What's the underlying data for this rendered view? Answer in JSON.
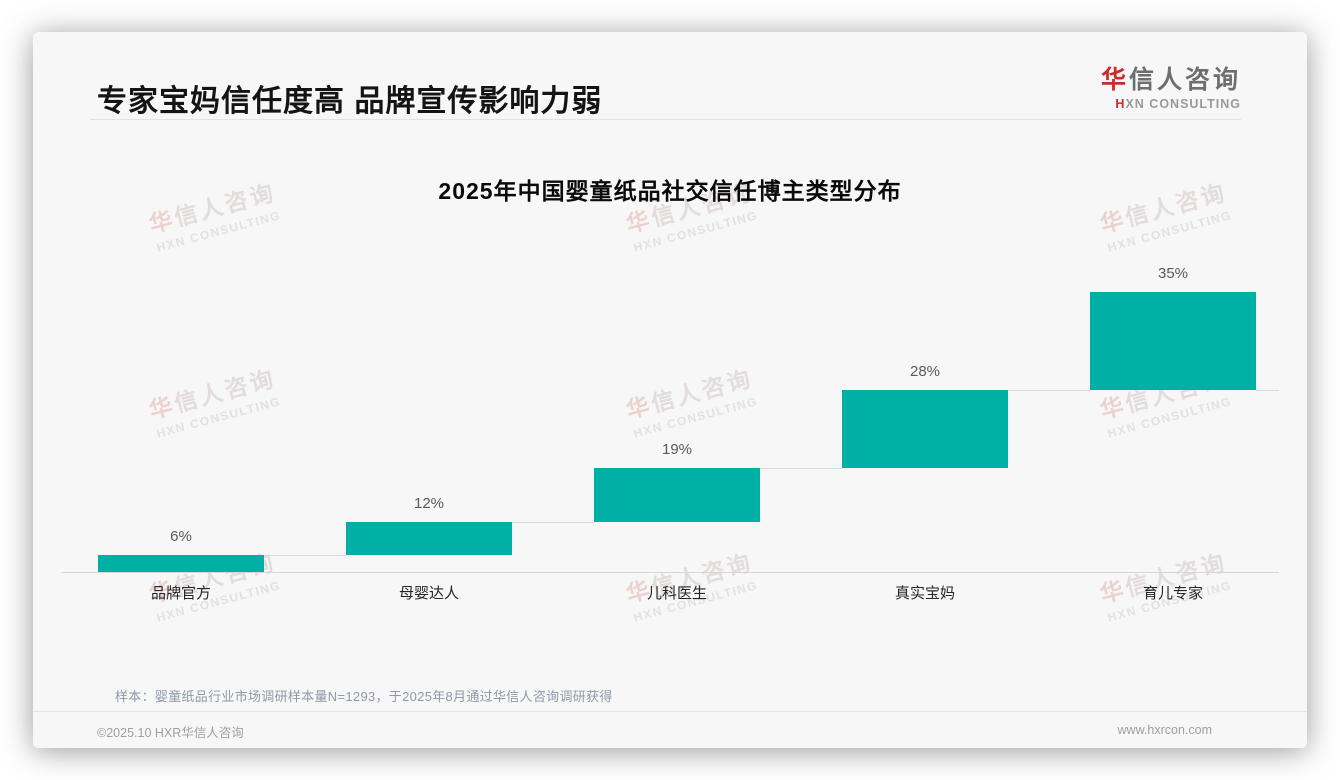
{
  "page": {
    "slide_title": "专家宝妈信任度高 品牌宣传影响力弱",
    "logo": {
      "cn_accent": "华",
      "cn_rest": "信人咨询",
      "en_accent": "H",
      "en_rest": "XN CONSULTING",
      "accent_color": "#cb2b2b"
    },
    "watermark": {
      "line1_accent": "华",
      "line1_rest": "信人咨询",
      "line2": "HXN CONSULTING"
    },
    "footnote": "样本：婴童纸品行业市场调研样本量N=1293，于2025年8月通过华信人咨询调研获得",
    "footer_left": "©2025.10 HXR华信人咨询",
    "footer_right": "www.hxrcon.com"
  },
  "chart_data": {
    "type": "bar",
    "variant": "waterfall-stepped",
    "title": "2025年中国婴童纸品社交信任博主类型分布",
    "categories": [
      "品牌官方",
      "母婴达人",
      "儿科医生",
      "真实宝妈",
      "育儿专家"
    ],
    "values": [
      6,
      12,
      19,
      28,
      35
    ],
    "value_labels": [
      "6%",
      "12%",
      "19%",
      "28%",
      "35%"
    ],
    "cumulative": [
      6,
      18,
      37,
      65,
      100
    ],
    "unit": "%",
    "ylim": [
      0,
      100
    ],
    "grid": false,
    "legend": false,
    "bar_color": "#00B0A5",
    "connector_color": "#dadada",
    "axis_color": "#d7d7d7",
    "value_label_color": "#595959",
    "category_label_color": "#262626"
  }
}
